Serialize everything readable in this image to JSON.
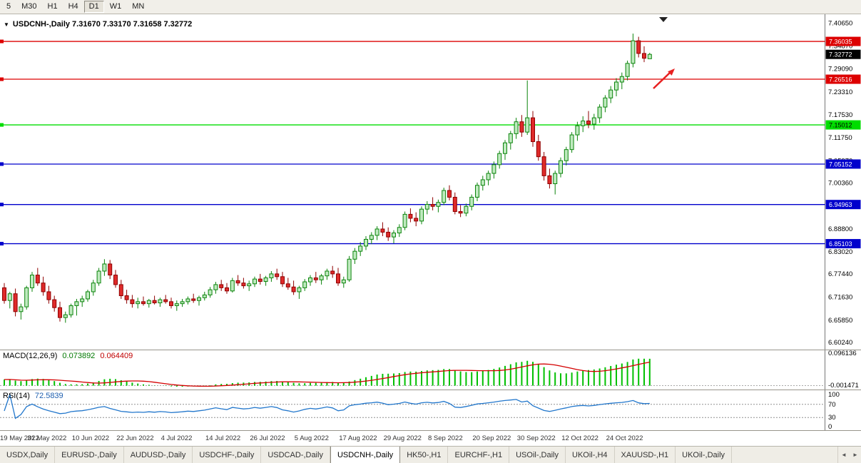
{
  "toolbar": {
    "timeframes": [
      {
        "label": "5",
        "active": false
      },
      {
        "label": "M30",
        "active": false
      },
      {
        "label": "H1",
        "active": false
      },
      {
        "label": "H4",
        "active": false
      },
      {
        "label": "D1",
        "active": true
      },
      {
        "label": "W1",
        "active": false
      },
      {
        "label": "MN",
        "active": false
      }
    ]
  },
  "chart_title": {
    "dropdown_icon": "▼",
    "text": "USDCNH-,Daily 7.31670 7.33170 7.31658 7.32772"
  },
  "chart_data": {
    "type": "candlestick",
    "symbol": "USDCNH-",
    "period": "Daily",
    "axis": {
      "price_max": 7.4215,
      "price_min": 6.588,
      "price_labels": [
        "7.40650",
        "7.34870",
        "7.29090",
        "7.23310",
        "7.17530",
        "7.11750",
        "7.05970",
        "7.00360",
        "6.94580",
        "6.88800",
        "6.83020",
        "6.77440",
        "6.71630",
        "6.65850",
        "6.60240"
      ],
      "date_ticks": [
        {
          "candle": 0,
          "label": "19 May 2022"
        },
        {
          "candle": 8,
          "label": "31 May 2022"
        },
        {
          "candle": 16,
          "label": "10 Jun 2022"
        },
        {
          "candle": 24,
          "label": "22 Jun 2022"
        },
        {
          "candle": 32,
          "label": "4 Jul 2022"
        },
        {
          "candle": 40,
          "label": "14 Jul 2022"
        },
        {
          "candle": 48,
          "label": "26 Jul 2022"
        },
        {
          "candle": 56,
          "label": "5 Aug 2022"
        },
        {
          "candle": 64,
          "label": "17 Aug 2022"
        },
        {
          "candle": 72,
          "label": "29 Aug 2022"
        },
        {
          "candle": 80,
          "label": "8 Sep 2022"
        },
        {
          "candle": 88,
          "label": "20 Sep 2022"
        },
        {
          "candle": 96,
          "label": "30 Sep 2022"
        },
        {
          "candle": 104,
          "label": "12 Oct 2022"
        },
        {
          "candle": 112,
          "label": "24 Oct 2022"
        }
      ]
    },
    "levels": [
      {
        "value": 7.36035,
        "label": "7.36035",
        "color": "#DD0000",
        "text_color": "#FFFFFF"
      },
      {
        "value": 7.26516,
        "label": "7.26516",
        "color": "#DD0000",
        "text_color": "#FFFFFF"
      },
      {
        "value": 7.15012,
        "label": "7.15012",
        "color": "#00DD00",
        "text_color": "#000000"
      },
      {
        "value": 7.05152,
        "label": "7.05152",
        "color": "#0000CC",
        "text_color": "#FFFFFF"
      },
      {
        "value": 6.94963,
        "label": "6.94963",
        "color": "#0000CC",
        "text_color": "#FFFFFF"
      },
      {
        "value": 6.85103,
        "label": "6.85103",
        "color": "#0000CC",
        "text_color": "#FFFFFF"
      }
    ],
    "current_price": {
      "value": 7.32772,
      "label": "7.32772",
      "bg": "#000000",
      "text_color": "#FFFFFF"
    },
    "colors": {
      "up_fill": "#BFEABF",
      "up_border": "#0B840B",
      "down_fill": "#DF2A2A",
      "down_border": "#8F0000",
      "macd_bar": "#00C000",
      "macd_signal": "#D40000",
      "rsi_line": "#2277CC",
      "arrow": "#E82020"
    },
    "candles": [
      [
        6.74,
        6.752,
        6.7,
        6.708
      ],
      [
        6.708,
        6.73,
        6.688,
        6.725
      ],
      [
        6.725,
        6.738,
        6.668,
        6.68
      ],
      [
        6.68,
        6.7,
        6.66,
        6.692
      ],
      [
        6.692,
        6.745,
        6.685,
        6.74
      ],
      [
        6.74,
        6.78,
        6.73,
        6.772
      ],
      [
        6.772,
        6.79,
        6.745,
        6.752
      ],
      [
        6.752,
        6.768,
        6.72,
        6.73
      ],
      [
        6.73,
        6.745,
        6.7,
        6.71
      ],
      [
        6.71,
        6.72,
        6.68,
        6.69
      ],
      [
        6.69,
        6.705,
        6.655,
        6.665
      ],
      [
        6.665,
        6.68,
        6.652,
        6.672
      ],
      [
        6.672,
        6.7,
        6.665,
        6.695
      ],
      [
        6.695,
        6.712,
        6.67,
        6.705
      ],
      [
        6.705,
        6.72,
        6.692,
        6.712
      ],
      [
        6.712,
        6.735,
        6.705,
        6.73
      ],
      [
        6.73,
        6.76,
        6.72,
        6.752
      ],
      [
        6.752,
        6.79,
        6.745,
        6.782
      ],
      [
        6.782,
        6.812,
        6.77,
        6.8
      ],
      [
        6.8,
        6.81,
        6.762,
        6.772
      ],
      [
        6.772,
        6.785,
        6.74,
        6.748
      ],
      [
        6.748,
        6.76,
        6.712,
        6.72
      ],
      [
        6.72,
        6.735,
        6.7,
        6.71
      ],
      [
        6.71,
        6.722,
        6.69,
        6.7
      ],
      [
        6.7,
        6.715,
        6.688,
        6.705
      ],
      [
        6.705,
        6.718,
        6.695,
        6.7
      ],
      [
        6.7,
        6.712,
        6.69,
        6.708
      ],
      [
        6.708,
        6.72,
        6.698,
        6.702
      ],
      [
        6.702,
        6.715,
        6.692,
        6.71
      ],
      [
        6.71,
        6.722,
        6.7,
        6.705
      ],
      [
        6.705,
        6.715,
        6.688,
        6.695
      ],
      [
        6.695,
        6.708,
        6.682,
        6.7
      ],
      [
        6.7,
        6.712,
        6.692,
        6.705
      ],
      [
        6.705,
        6.718,
        6.698,
        6.712
      ],
      [
        6.712,
        6.725,
        6.702,
        6.708
      ],
      [
        6.708,
        6.72,
        6.695,
        6.715
      ],
      [
        6.715,
        6.73,
        6.708,
        6.722
      ],
      [
        6.722,
        6.742,
        6.715,
        6.735
      ],
      [
        6.735,
        6.755,
        6.725,
        6.748
      ],
      [
        6.748,
        6.76,
        6.732,
        6.74
      ],
      [
        6.74,
        6.752,
        6.725,
        6.732
      ],
      [
        6.732,
        6.765,
        6.728,
        6.758
      ],
      [
        6.758,
        6.772,
        6.745,
        6.752
      ],
      [
        6.752,
        6.765,
        6.738,
        6.745
      ],
      [
        6.745,
        6.758,
        6.732,
        6.75
      ],
      [
        6.75,
        6.768,
        6.742,
        6.762
      ],
      [
        6.762,
        6.775,
        6.748,
        6.756
      ],
      [
        6.756,
        6.77,
        6.745,
        6.765
      ],
      [
        6.765,
        6.782,
        6.755,
        6.775
      ],
      [
        6.775,
        6.788,
        6.76,
        6.768
      ],
      [
        6.768,
        6.78,
        6.742,
        6.75
      ],
      [
        6.75,
        6.765,
        6.735,
        6.742
      ],
      [
        6.742,
        6.758,
        6.722,
        6.73
      ],
      [
        6.73,
        6.745,
        6.712,
        6.74
      ],
      [
        6.74,
        6.762,
        6.732,
        6.755
      ],
      [
        6.755,
        6.772,
        6.745,
        6.765
      ],
      [
        6.765,
        6.78,
        6.752,
        6.76
      ],
      [
        6.76,
        6.775,
        6.748,
        6.77
      ],
      [
        6.77,
        6.788,
        6.76,
        6.782
      ],
      [
        6.782,
        6.795,
        6.765,
        6.775
      ],
      [
        6.775,
        6.79,
        6.745,
        6.752
      ],
      [
        6.752,
        6.768,
        6.74,
        6.76
      ],
      [
        6.76,
        6.82,
        6.755,
        6.812
      ],
      [
        6.812,
        6.84,
        6.8,
        6.832
      ],
      [
        6.832,
        6.855,
        6.82,
        6.845
      ],
      [
        6.845,
        6.87,
        6.835,
        6.862
      ],
      [
        6.862,
        6.88,
        6.85,
        6.872
      ],
      [
        6.872,
        6.895,
        6.86,
        6.888
      ],
      [
        6.888,
        6.905,
        6.87,
        6.88
      ],
      [
        6.88,
        6.892,
        6.858,
        6.868
      ],
      [
        6.868,
        6.885,
        6.852,
        6.878
      ],
      [
        6.878,
        6.9,
        6.868,
        6.892
      ],
      [
        6.892,
        6.932,
        6.885,
        6.925
      ],
      [
        6.925,
        6.94,
        6.905,
        6.915
      ],
      [
        6.915,
        6.93,
        6.895,
        6.908
      ],
      [
        6.908,
        6.945,
        6.9,
        6.938
      ],
      [
        6.938,
        6.958,
        6.925,
        6.95
      ],
      [
        6.95,
        6.968,
        6.935,
        6.945
      ],
      [
        6.945,
        6.962,
        6.93,
        6.955
      ],
      [
        6.955,
        6.992,
        6.948,
        6.985
      ],
      [
        6.985,
        6.998,
        6.96,
        6.968
      ],
      [
        6.968,
        6.98,
        6.925,
        6.932
      ],
      [
        6.932,
        6.948,
        6.918,
        6.928
      ],
      [
        6.928,
        6.952,
        6.92,
        6.945
      ],
      [
        6.945,
        6.975,
        6.935,
        6.968
      ],
      [
        6.968,
        7.005,
        6.958,
        6.998
      ],
      [
        6.998,
        7.022,
        6.985,
        7.012
      ],
      [
        7.012,
        7.035,
        6.998,
        7.028
      ],
      [
        7.028,
        7.058,
        7.015,
        7.05
      ],
      [
        7.05,
        7.085,
        7.04,
        7.078
      ],
      [
        7.078,
        7.112,
        7.062,
        7.105
      ],
      [
        7.105,
        7.135,
        7.088,
        7.128
      ],
      [
        7.128,
        7.168,
        7.115,
        7.158
      ],
      [
        7.158,
        7.175,
        7.12,
        7.132
      ],
      [
        7.132,
        7.262,
        7.125,
        7.168
      ],
      [
        7.168,
        7.185,
        7.095,
        7.108
      ],
      [
        7.108,
        7.125,
        7.06,
        7.07
      ],
      [
        7.07,
        7.082,
        7.01,
        7.022
      ],
      [
        7.022,
        7.04,
        6.99,
        7.002
      ],
      [
        7.002,
        7.035,
        6.975,
        7.028
      ],
      [
        7.028,
        7.068,
        7.018,
        7.06
      ],
      [
        7.06,
        7.095,
        7.048,
        7.088
      ],
      [
        7.088,
        7.132,
        7.08,
        7.125
      ],
      [
        7.125,
        7.158,
        7.11,
        7.148
      ],
      [
        7.148,
        7.172,
        7.132,
        7.16
      ],
      [
        7.16,
        7.185,
        7.142,
        7.152
      ],
      [
        7.152,
        7.178,
        7.138,
        7.168
      ],
      [
        7.168,
        7.202,
        7.155,
        7.195
      ],
      [
        7.195,
        7.225,
        7.182,
        7.218
      ],
      [
        7.218,
        7.248,
        7.205,
        7.238
      ],
      [
        7.238,
        7.268,
        7.222,
        7.258
      ],
      [
        7.258,
        7.282,
        7.24,
        7.272
      ],
      [
        7.272,
        7.312,
        7.262,
        7.305
      ],
      [
        7.305,
        7.38,
        7.295,
        7.362
      ],
      [
        7.362,
        7.372,
        7.32,
        7.33
      ],
      [
        7.33,
        7.348,
        7.308,
        7.318
      ],
      [
        7.3167,
        7.3317,
        7.3166,
        7.3277
      ]
    ]
  },
  "macd": {
    "name": "MACD(12,26,9)",
    "value_main": "0.073892",
    "value_signal": "0.064409",
    "axis_top": "0.096136",
    "axis_bottom": "-0.001471"
  },
  "rsi": {
    "name": "RSI(14)",
    "value": "72.5839",
    "axis_labels": [
      "100",
      "70",
      "30",
      "0"
    ],
    "levels": [
      70,
      30
    ]
  },
  "tabs": [
    {
      "label": "USDX,Daily",
      "active": false
    },
    {
      "label": "EURUSD-,Daily",
      "active": false
    },
    {
      "label": "AUDUSD-,Daily",
      "active": false
    },
    {
      "label": "USDCHF-,Daily",
      "active": false
    },
    {
      "label": "USDCAD-,Daily",
      "active": false
    },
    {
      "label": "USDCNH-,Daily",
      "active": true
    },
    {
      "label": "HK50-,H1",
      "active": false
    },
    {
      "label": "EURCHF-,H1",
      "active": false
    },
    {
      "label": "USOil-,Daily",
      "active": false
    },
    {
      "label": "UKOil-,H4",
      "active": false
    },
    {
      "label": "XAUUSD-,H1",
      "active": false
    },
    {
      "label": "UKOil-,Daily",
      "active": false
    }
  ],
  "tab_scroll": {
    "left": "◄",
    "right": "►"
  }
}
